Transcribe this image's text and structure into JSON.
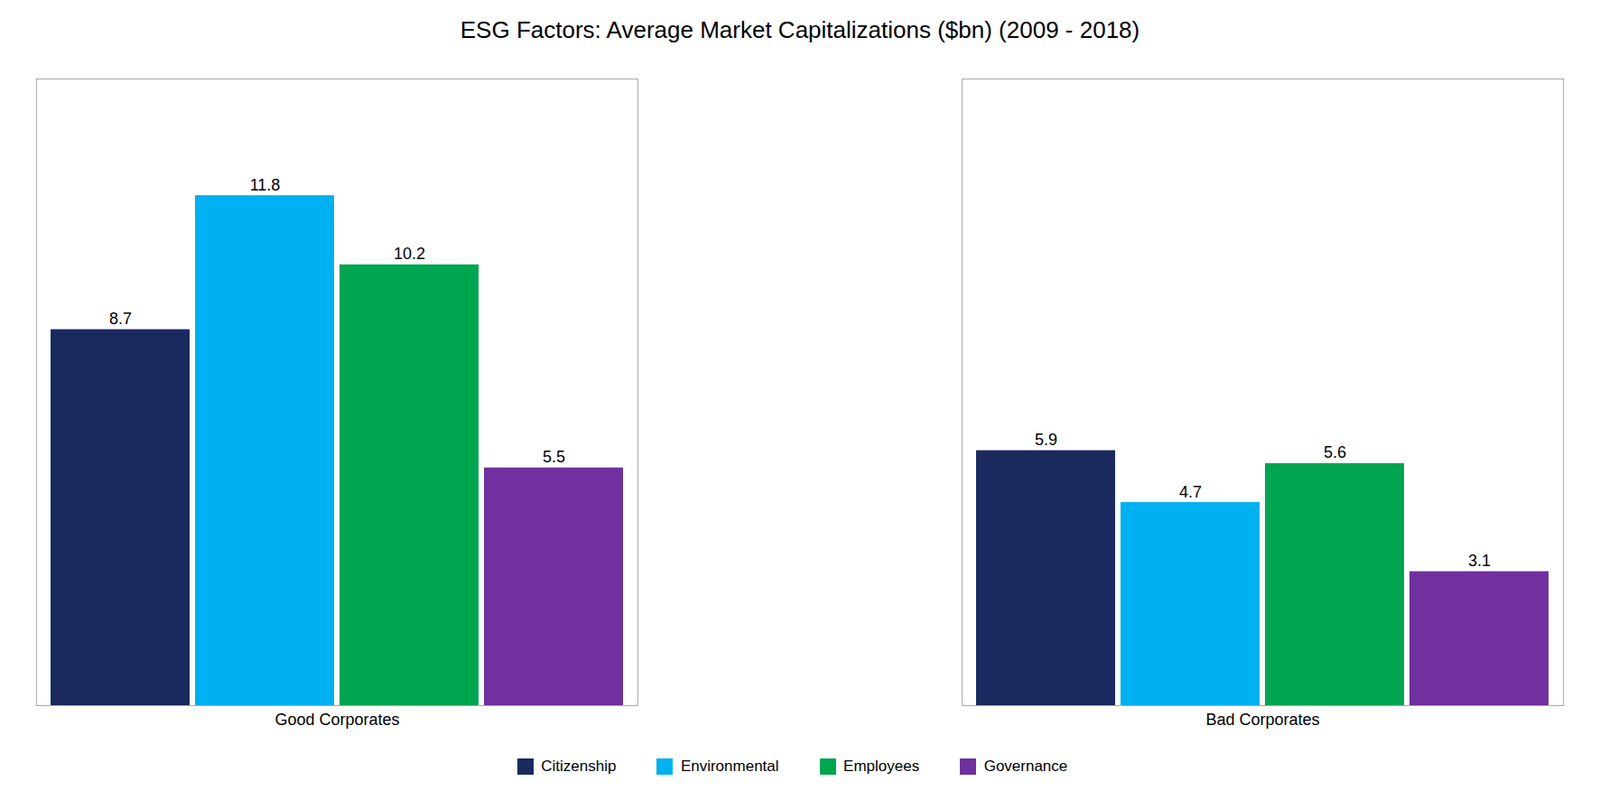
{
  "chart_data": {
    "type": "bar",
    "title": "ESG Factors: Average Market Capitalizations ($bn) (2009 - 2018)",
    "categories": [
      "Good Corporates",
      "Bad Corporates"
    ],
    "series": [
      {
        "name": "Citizenship",
        "color": "#1b2a5e",
        "values": [
          8.7,
          5.9
        ]
      },
      {
        "name": "Environmental",
        "color": "#00b0f0",
        "values": [
          11.8,
          4.7
        ]
      },
      {
        "name": "Employees",
        "color": "#00a550",
        "values": [
          10.2,
          5.6
        ]
      },
      {
        "name": "Governance",
        "color": "#7030a0",
        "values": [
          5.5,
          3.1
        ]
      }
    ],
    "ylim": [
      0,
      14.5
    ],
    "data_labels": true,
    "tick_labels": "x",
    "grid": false,
    "legend": "bottom"
  }
}
